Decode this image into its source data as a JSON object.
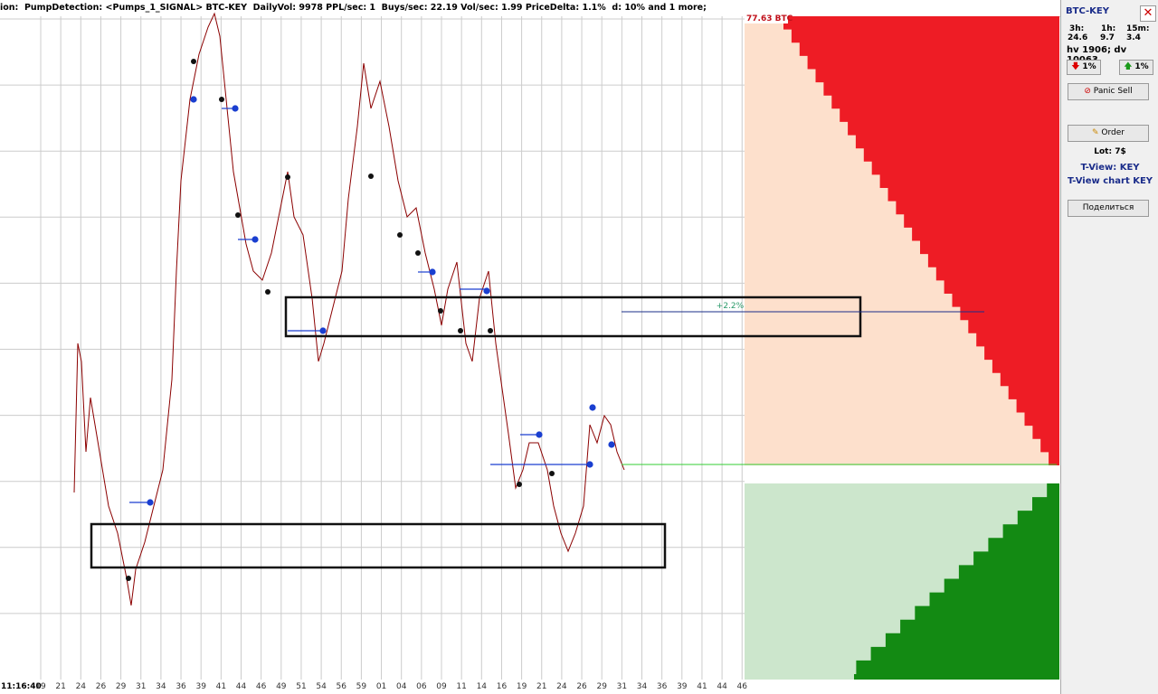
{
  "header": {
    "title": "ion:  PumpDetection: <Pumps_1_SIGNAL> BTC-KEY  DailyVol: 9978 PPL/sec: 1  Buys/sec: 22.19 Vol/sec: 1.99 PriceDelta: 1.1%  d: 10% and 1 more;"
  },
  "chart": {
    "x_labels": [
      "11:16:40",
      "19",
      "21",
      "24",
      "26",
      "29",
      "31",
      "34",
      "36",
      "39",
      "41",
      "44",
      "46",
      "49",
      "51",
      "54",
      "56",
      "59",
      "01",
      "04",
      "06",
      "09",
      "11",
      "14",
      "16",
      "19",
      "21",
      "24",
      "26",
      "29",
      "31",
      "34",
      "36",
      "39",
      "41",
      "44",
      "46"
    ],
    "order_book_label": "77.63 BTC",
    "target_label": "+2.2%"
  },
  "panel": {
    "pair": "BTC-KEY",
    "periods": [
      "3h:",
      "1h:",
      "15m:"
    ],
    "period_values": [
      "24.6",
      "9.7",
      "3.4"
    ],
    "volume": "hv 1906; dv 10063",
    "down_pct": "1%",
    "up_pct": "1%",
    "panic_sell": "Panic Sell",
    "order": "Order",
    "lot": "Lot: 7$",
    "tview": "T-View: KEY",
    "tview_chart": "T-View chart KEY",
    "share": "Поделиться"
  }
}
